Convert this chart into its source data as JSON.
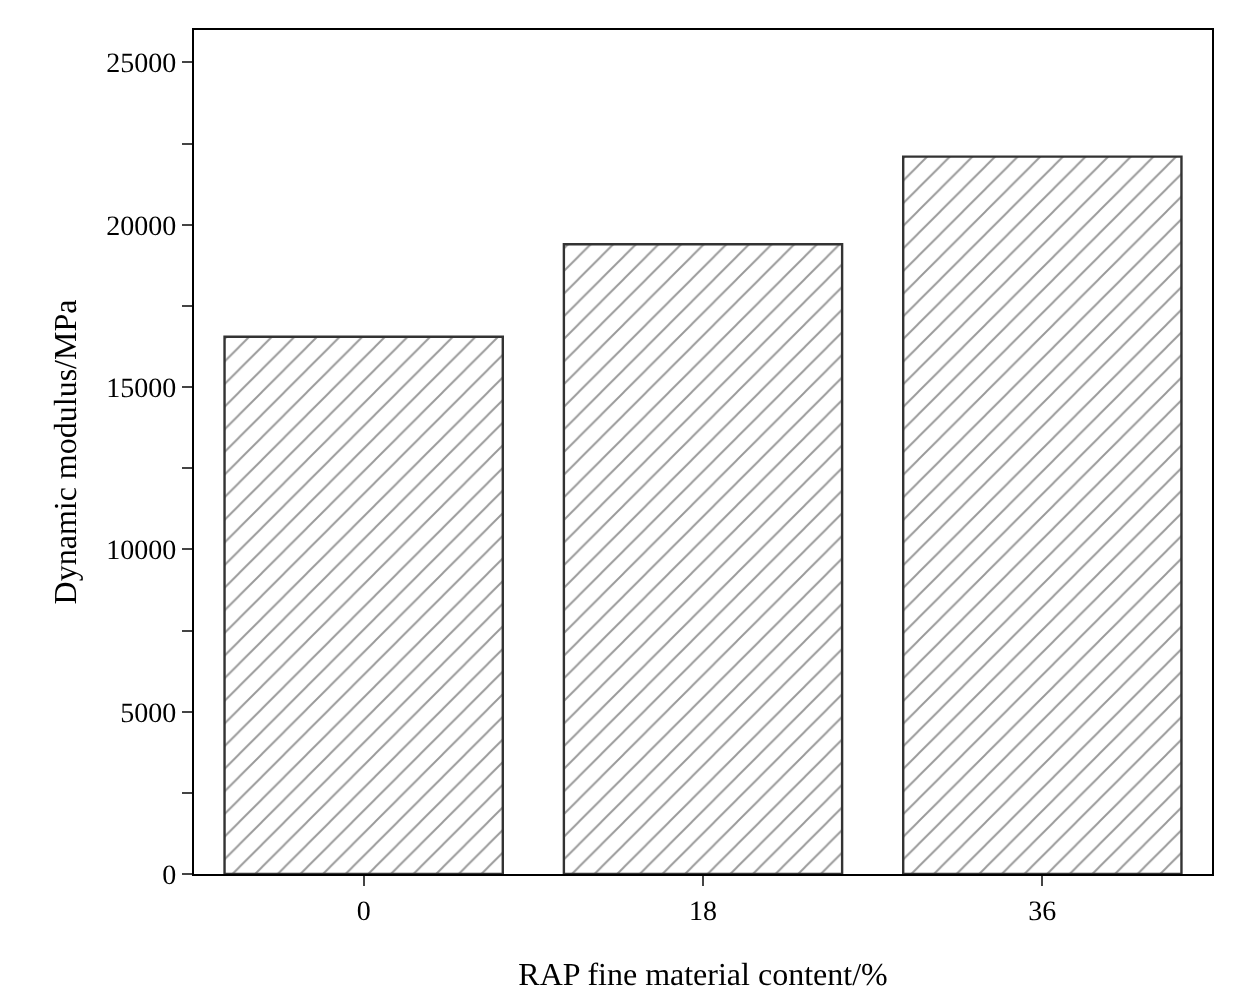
{
  "chart_data": {
    "type": "bar",
    "xlabel": "RAP fine material content/%",
    "ylabel": "Dynamic modulus/MPa",
    "categories": [
      "0",
      "18",
      "36"
    ],
    "values": [
      16550,
      19400,
      22100
    ],
    "color": "#333333",
    "ylim": [
      0,
      26000
    ],
    "yticks": [
      0,
      {
        "value": 2500,
        "label": null
      },
      5000,
      {
        "value": 7500,
        "label": null
      },
      10000,
      {
        "value": 12500,
        "label": null
      },
      15000,
      {
        "value": 17500,
        "label": null
      },
      20000,
      {
        "value": 22500,
        "label": null
      },
      25000
    ],
    "tick_labels": [
      "x",
      "y"
    ]
  }
}
